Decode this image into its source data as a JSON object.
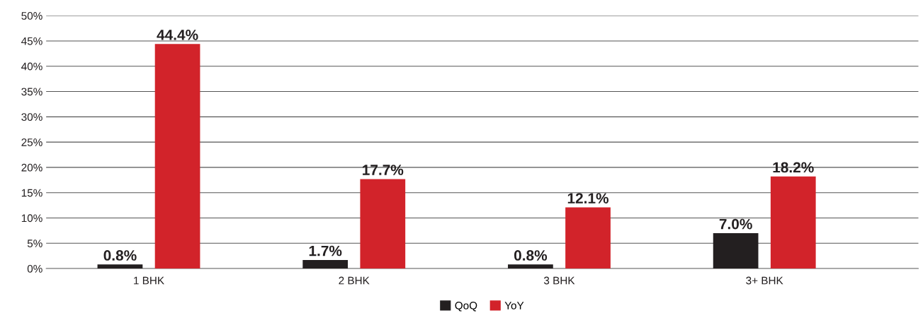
{
  "chart_data": {
    "type": "bar",
    "categories": [
      "1 BHK",
      "2 BHK",
      "3 BHK",
      "3+ BHK"
    ],
    "series": [
      {
        "name": "QoQ",
        "color": "#231f20",
        "values": [
          0.8,
          1.7,
          0.8,
          7.0
        ],
        "value_labels": [
          "0.8%",
          "1.7%",
          "0.8%",
          "7.0%"
        ]
      },
      {
        "name": "YoY",
        "color": "#d2232a",
        "values": [
          44.4,
          17.7,
          12.1,
          18.2
        ],
        "value_labels": [
          "44.4%",
          "17.7%",
          "12.1%",
          "18.2%"
        ]
      }
    ],
    "ylim": [
      0,
      50
    ],
    "yticks": [
      {
        "value": 0,
        "label": "0%"
      },
      {
        "value": 5,
        "label": "5%"
      },
      {
        "value": 10,
        "label": "10%"
      },
      {
        "value": 15,
        "label": "15%"
      },
      {
        "value": 20,
        "label": "20%"
      },
      {
        "value": 25,
        "label": "25%"
      },
      {
        "value": 30,
        "label": "30%"
      },
      {
        "value": 35,
        "label": "35%"
      },
      {
        "value": 40,
        "label": "40%"
      },
      {
        "value": 45,
        "label": "45%"
      },
      {
        "value": 50,
        "label": "50%"
      }
    ],
    "grid": "y",
    "legend": "bottom"
  }
}
